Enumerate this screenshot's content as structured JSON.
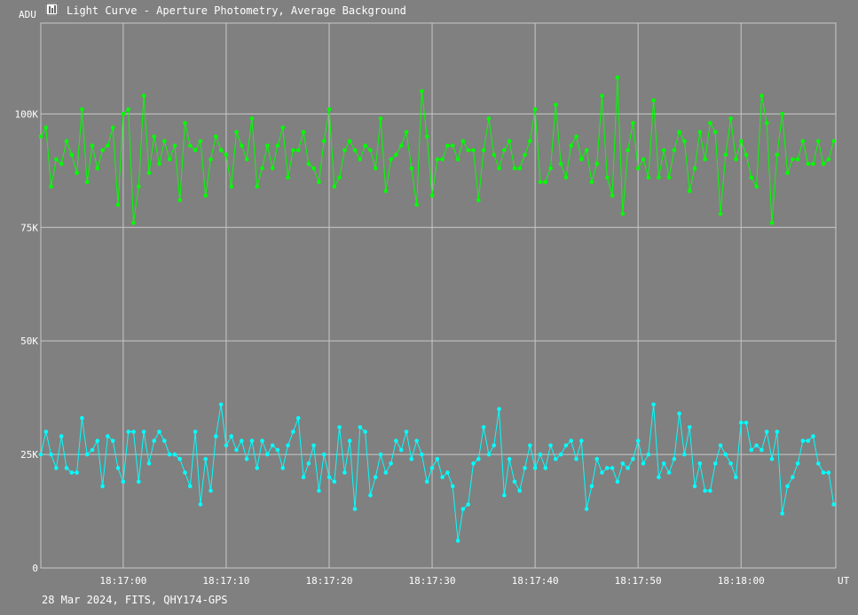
{
  "window": {
    "title": "Light Curve - Aperture Photometry, Average Background",
    "footer": "28 Mar 2024, FITS, QHY174-GPS"
  },
  "colors": {
    "background": "#808080",
    "grid": "#c8c8c8",
    "series_green": "#00ff00",
    "series_cyan": "#00ffff",
    "text": "#ffffff"
  },
  "chart_data": {
    "type": "line",
    "ylabel": "ADU",
    "xlabel": "UT",
    "ylim": [
      0,
      120000
    ],
    "xlim_seconds_after_18_16_52": [
      0,
      77.2
    ],
    "grid": true,
    "y_ticks": [
      {
        "value": 0,
        "label": "0"
      },
      {
        "value": 25000,
        "label": "25K"
      },
      {
        "value": 50000,
        "label": "50K"
      },
      {
        "value": 75000,
        "label": "75K"
      },
      {
        "value": 100000,
        "label": "100K"
      }
    ],
    "x_ticks": [
      {
        "value": 8.0,
        "label": "18:17:00"
      },
      {
        "value": 18.0,
        "label": "18:17:10"
      },
      {
        "value": 28.0,
        "label": "18:17:20"
      },
      {
        "value": 38.0,
        "label": "18:17:30"
      },
      {
        "value": 48.0,
        "label": "18:17:40"
      },
      {
        "value": 58.0,
        "label": "18:17:50"
      },
      {
        "value": 68.0,
        "label": "18:18:00"
      }
    ],
    "x_start": 0,
    "x_step": 0.5,
    "series": [
      {
        "color": "#00ff00",
        "values": [
          95,
          97,
          84,
          90,
          89,
          94,
          91,
          87,
          101,
          85,
          93,
          88,
          92,
          93,
          97,
          80,
          100,
          101,
          76,
          84,
          104,
          87,
          95,
          89,
          94,
          90,
          93,
          81,
          98,
          93,
          92,
          94,
          82,
          90,
          95,
          92,
          91,
          84,
          96,
          93,
          90,
          99,
          84,
          88,
          93,
          88,
          93,
          97,
          86,
          92,
          92,
          96,
          89,
          88,
          85,
          94,
          101,
          84,
          86,
          92,
          94,
          92,
          90,
          93,
          92,
          88,
          99,
          83,
          90,
          91,
          93,
          96,
          88,
          80,
          105,
          95,
          82,
          90,
          90,
          93,
          93,
          90,
          94,
          92,
          92,
          81,
          92,
          99,
          91,
          88,
          92,
          94,
          88,
          88,
          91,
          94,
          101,
          85,
          85,
          88,
          102,
          89,
          86,
          93,
          95,
          90,
          92,
          85,
          89,
          104,
          86,
          82,
          108,
          78,
          92,
          98,
          88,
          90,
          86,
          103,
          86,
          92,
          86,
          92,
          96,
          94,
          83,
          88,
          96,
          90,
          98,
          96,
          78,
          91,
          99,
          90,
          94,
          91,
          86,
          84,
          104,
          98,
          76,
          91,
          100,
          87,
          90,
          90,
          94,
          89,
          89,
          94,
          89,
          90,
          94
        ]
      },
      {
        "color": "#00ffff",
        "values": [
          25,
          30,
          25,
          22,
          29,
          22,
          21,
          21,
          33,
          25,
          26,
          28,
          18,
          29,
          28,
          22,
          19,
          30,
          30,
          19,
          30,
          23,
          28,
          30,
          28,
          25,
          25,
          24,
          21,
          18,
          30,
          14,
          24,
          17,
          29,
          36,
          27,
          29,
          26,
          28,
          24,
          28,
          22,
          28,
          25,
          27,
          26,
          22,
          27,
          30,
          33,
          20,
          23,
          27,
          17,
          25,
          20,
          19,
          31,
          21,
          28,
          13,
          31,
          30,
          16,
          20,
          25,
          21,
          23,
          28,
          26,
          30,
          24,
          28,
          25,
          19,
          22,
          24,
          20,
          21,
          18,
          6,
          13,
          14,
          23,
          24,
          31,
          25,
          27,
          35,
          16,
          24,
          19,
          17,
          22,
          27,
          22,
          25,
          22,
          27,
          24,
          25,
          27,
          28,
          24,
          28,
          13,
          18,
          24,
          21,
          22,
          22,
          19,
          23,
          22,
          24,
          28,
          23,
          25,
          36,
          20,
          23,
          21,
          24,
          34,
          25,
          31,
          18,
          23,
          17,
          17,
          23,
          27,
          25,
          23,
          20,
          32,
          32,
          26,
          27,
          26,
          30,
          24,
          30,
          12,
          18,
          20,
          23,
          28,
          28,
          29,
          23,
          21,
          21,
          14
        ]
      }
    ]
  }
}
